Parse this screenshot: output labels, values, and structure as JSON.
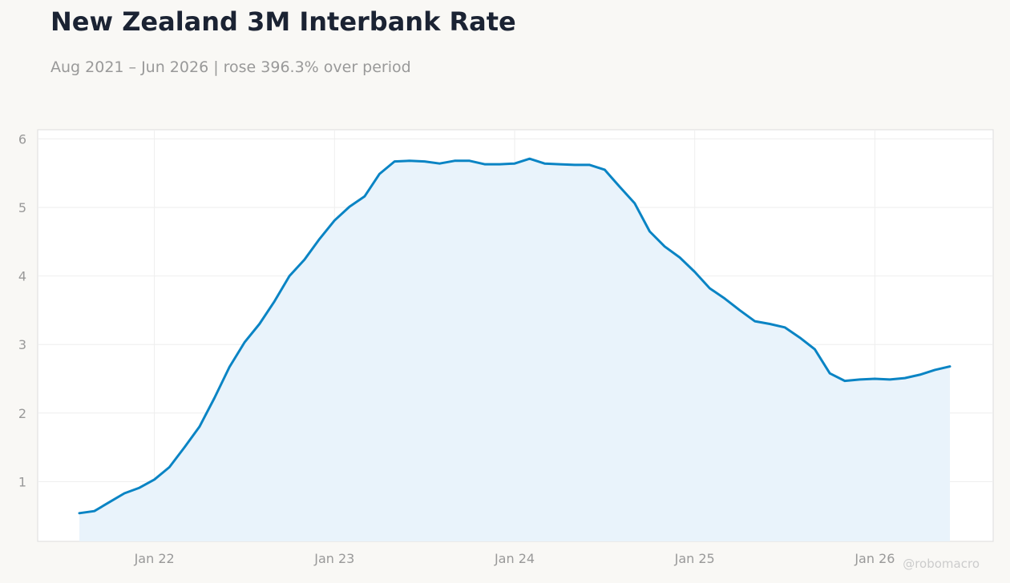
{
  "chart_data": {
    "type": "area",
    "title": "New Zealand 3M Interbank Rate",
    "subtitle": "Aug 2021 – Jun 2026 | rose 396.3% over period",
    "watermark": "@robomacro",
    "xlabel": "",
    "ylabel": "",
    "x_ticks": [
      "Jan 22",
      "Jan 23",
      "Jan 24",
      "Jan 25",
      "Jan 26"
    ],
    "y_ticks": [
      1,
      2,
      3,
      4,
      5,
      6
    ],
    "grid": true,
    "line_color": "#0a84c4",
    "fill_color": "#e9f3fb",
    "x_start": "2021-08",
    "x_end": "2026-06",
    "series": [
      {
        "x": [
          "2021-08",
          "2021-09",
          "2021-10",
          "2021-11",
          "2021-12",
          "2022-01",
          "2022-02",
          "2022-03",
          "2022-04",
          "2022-05",
          "2022-06",
          "2022-07",
          "2022-08",
          "2022-09",
          "2022-10",
          "2022-11",
          "2022-12",
          "2023-01",
          "2023-02",
          "2023-03",
          "2023-04",
          "2023-05",
          "2023-06",
          "2023-07",
          "2023-08",
          "2023-09",
          "2023-10",
          "2023-11",
          "2023-12",
          "2024-01",
          "2024-02",
          "2024-03",
          "2024-04",
          "2024-05",
          "2024-06",
          "2024-07",
          "2024-08",
          "2024-09",
          "2024-10",
          "2024-11",
          "2024-12",
          "2025-01",
          "2025-02",
          "2025-03",
          "2025-04",
          "2025-05",
          "2025-06",
          "2025-07",
          "2025-08",
          "2025-09",
          "2025-10",
          "2025-11",
          "2025-12",
          "2026-01",
          "2026-02",
          "2026-03",
          "2026-04",
          "2026-05",
          "2026-06"
        ],
        "values": [
          0.54,
          0.57,
          0.7,
          0.83,
          0.91,
          1.03,
          1.21,
          1.5,
          1.8,
          2.22,
          2.67,
          3.03,
          3.3,
          3.63,
          4.0,
          4.24,
          4.54,
          4.81,
          5.01,
          5.16,
          5.49,
          5.67,
          5.68,
          5.67,
          5.64,
          5.68,
          5.68,
          5.63,
          5.63,
          5.64,
          5.71,
          5.64,
          5.63,
          5.62,
          5.62,
          5.55,
          5.3,
          5.06,
          4.65,
          4.43,
          4.27,
          4.06,
          3.82,
          3.67,
          3.5,
          3.34,
          3.3,
          3.25,
          3.1,
          2.93,
          2.58,
          2.47,
          2.49,
          2.5,
          2.49,
          2.51,
          2.56,
          2.63,
          2.68
        ]
      }
    ]
  }
}
